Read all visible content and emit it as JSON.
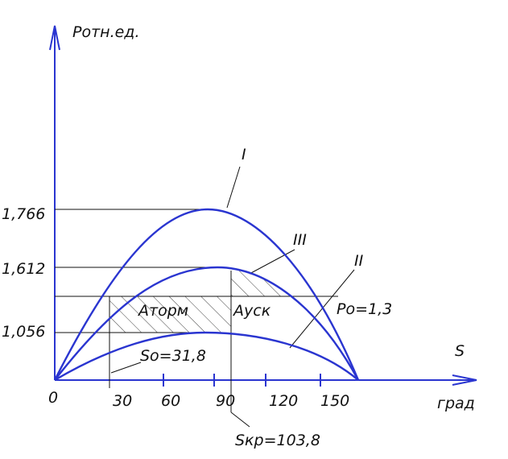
{
  "axis": {
    "y_label": "Ротн.ед.",
    "x_label": "S",
    "x_unit": "град",
    "origin": "0"
  },
  "y_ticks": [
    "1,766",
    "1,612",
    "1,056"
  ],
  "x_ticks": [
    "30",
    "60",
    "90",
    "120",
    "150"
  ],
  "curves": [
    "I",
    "III",
    "II"
  ],
  "areas": [
    "Аторм",
    "Ауск"
  ],
  "annotations": {
    "po": "Ро=1,3",
    "so": "So=31,8",
    "skr": "Sкр=103,8"
  }
}
